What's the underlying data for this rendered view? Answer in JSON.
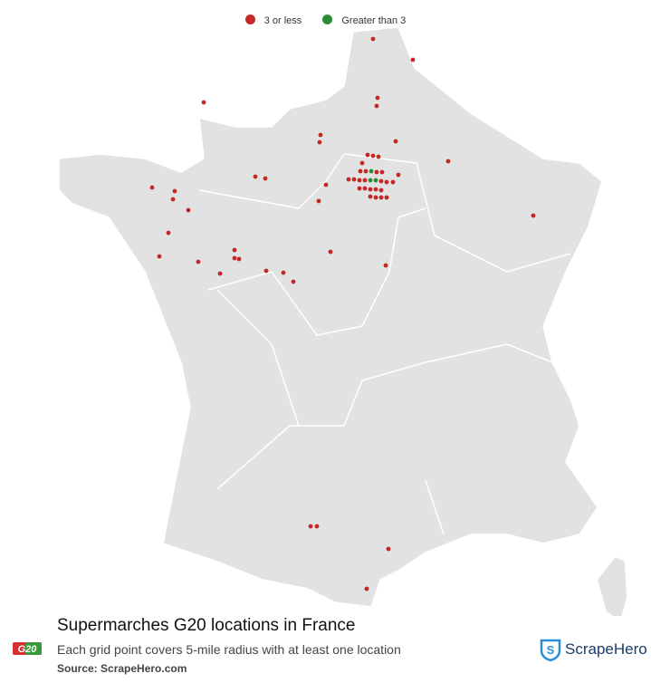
{
  "legend": [
    {
      "label": "3 or less",
      "color": "#c62828"
    },
    {
      "label": "Greater than 3",
      "color": "#2e8b3a"
    }
  ],
  "title": "Supermarches G20 locations in France",
  "subtitle": "Each grid point covers 5-mile radius with at least one location",
  "source": "Source: ScrapeHero.com",
  "brand": "ScrapeHero",
  "logo": "G20"
}
